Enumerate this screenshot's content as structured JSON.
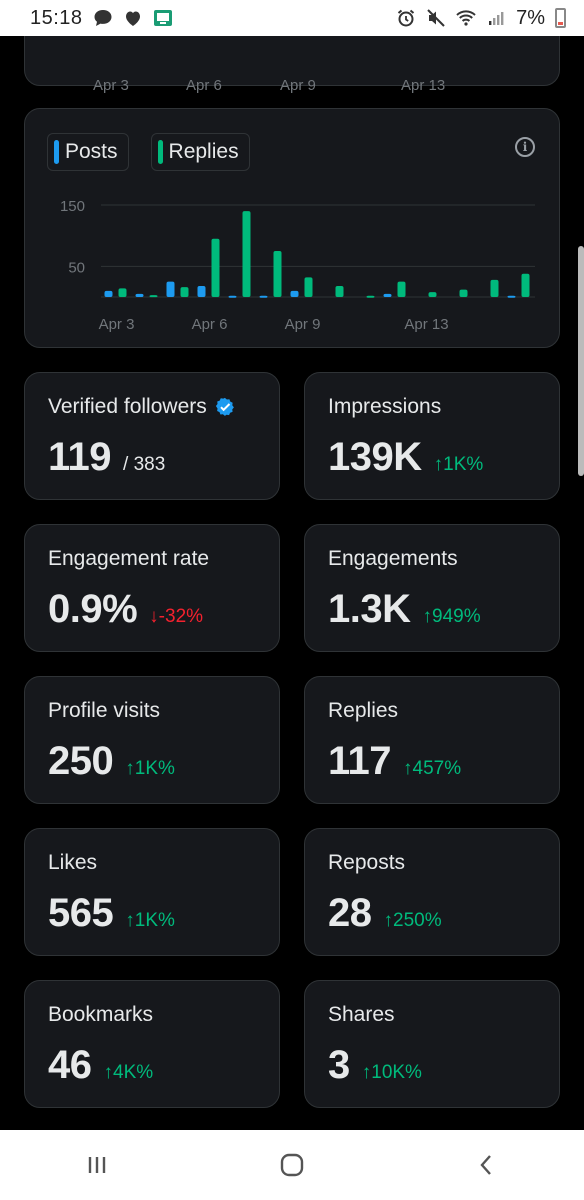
{
  "status_bar": {
    "time": "15:18",
    "battery": "7%",
    "left_icons": [
      "chat-bubble-icon",
      "heart-icon",
      "screen-cast-icon"
    ],
    "right_icons": [
      "alarm-icon",
      "mute-icon",
      "wifi-icon",
      "signal-icon",
      "battery-icon"
    ]
  },
  "top_chart": {
    "x_ticks": [
      "Apr 3",
      "Apr 6",
      "Apr 9",
      "Apr 13"
    ]
  },
  "chart": {
    "legend": [
      {
        "label": "Posts",
        "color": "#1d9bf0"
      },
      {
        "label": "Replies",
        "color": "#00ba7c"
      }
    ],
    "info_icon": "info-icon"
  },
  "chart_data": {
    "type": "bar",
    "categories": [
      "Apr 3",
      "Apr 4",
      "Apr 5",
      "Apr 6",
      "Apr 7",
      "Apr 8",
      "Apr 9",
      "Apr 10",
      "Apr 11",
      "Apr 12",
      "Apr 13",
      "Apr 14",
      "Apr 15",
      "Apr 16"
    ],
    "x_tick_labels": [
      "Apr 3",
      "Apr 6",
      "Apr 9",
      "Apr 13"
    ],
    "y_tick_labels": [
      "150",
      "50"
    ],
    "series": [
      {
        "name": "Posts",
        "color": "#1d9bf0",
        "values": [
          10,
          5,
          25,
          18,
          2,
          2,
          10,
          0,
          0,
          5,
          0,
          0,
          0,
          2
        ]
      },
      {
        "name": "Replies",
        "color": "#00ba7c",
        "values": [
          14,
          3,
          16,
          95,
          140,
          75,
          32,
          18,
          2,
          25,
          8,
          12,
          28,
          38
        ]
      }
    ],
    "ylim": [
      0,
      150
    ],
    "grid": true
  },
  "metrics": [
    {
      "label": "Verified followers",
      "value": "119",
      "sub": "/ 383",
      "change": "",
      "direction": "",
      "verified": true
    },
    {
      "label": "Impressions",
      "value": "139K",
      "sub": "",
      "change": "1K%",
      "direction": "up"
    },
    {
      "label": "Engagement rate",
      "value": "0.9%",
      "sub": "",
      "change": "-32%",
      "direction": "down"
    },
    {
      "label": "Engagements",
      "value": "1.3K",
      "sub": "",
      "change": "949%",
      "direction": "up"
    },
    {
      "label": "Profile visits",
      "value": "250",
      "sub": "",
      "change": "1K%",
      "direction": "up"
    },
    {
      "label": "Replies",
      "value": "117",
      "sub": "",
      "change": "457%",
      "direction": "up"
    },
    {
      "label": "Likes",
      "value": "565",
      "sub": "",
      "change": "1K%",
      "direction": "up"
    },
    {
      "label": "Reposts",
      "value": "28",
      "sub": "",
      "change": "250%",
      "direction": "up"
    },
    {
      "label": "Bookmarks",
      "value": "46",
      "sub": "",
      "change": "4K%",
      "direction": "up"
    },
    {
      "label": "Shares",
      "value": "3",
      "sub": "",
      "change": "10K%",
      "direction": "up"
    }
  ],
  "nav": [
    "recent-apps-icon",
    "home-icon",
    "back-icon"
  ]
}
